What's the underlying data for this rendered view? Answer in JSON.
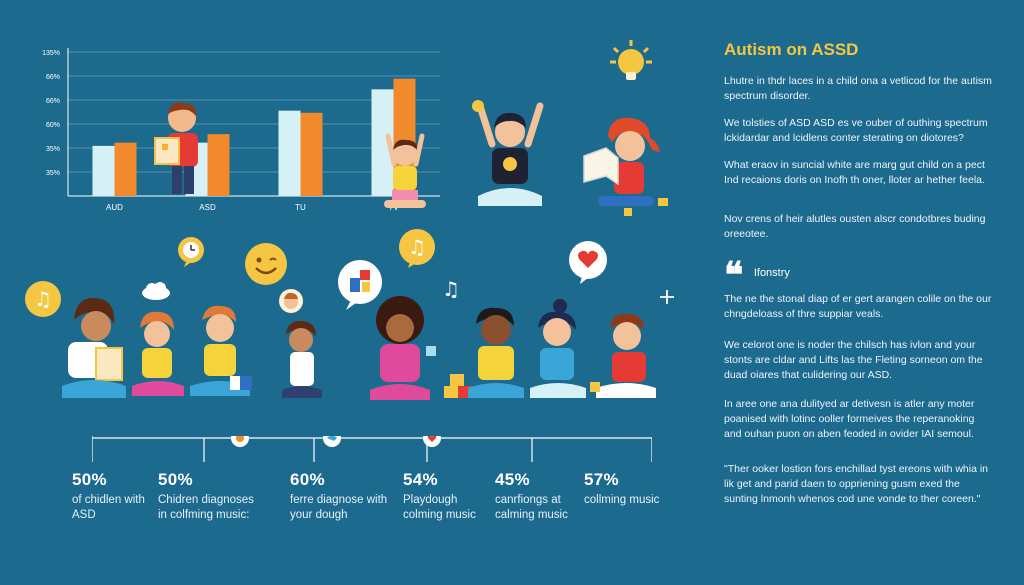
{
  "chart_data": {
    "type": "bar",
    "categories": [
      "AUD",
      "ASD",
      "TU",
      "TV"
    ],
    "series": [
      {
        "color": "#d6f1f6",
        "values": [
          47,
          50,
          80,
          100
        ]
      },
      {
        "color": "#f08a2c",
        "values": [
          50,
          58,
          78,
          110
        ]
      }
    ],
    "ytick_labels": [
      "135%",
      "66%",
      "66%",
      "60%",
      "35%",
      "35%"
    ],
    "ylim": [
      0,
      135
    ],
    "grid": true
  },
  "stats": [
    {
      "pct": "50%",
      "label": "of chidlen with ASD"
    },
    {
      "pct": "50%",
      "label": "Chidren diagnoses in colfming music:"
    },
    {
      "pct": "60%",
      "label": "ferre diagnose with your dough"
    },
    {
      "pct": "54%",
      "label": "Playdough colming music"
    },
    {
      "pct": "45%",
      "label": "canrfiongs at calming music"
    },
    {
      "pct": "57%",
      "label": "collming music"
    }
  ],
  "timeline_icons": [
    "flower-icon",
    "bird-icon",
    "heart-icon"
  ],
  "panel": {
    "title": "Autism on ASSD",
    "p1": "Lhutre in thdr laces in a child ona a vetlicod for the autism spectrum disorder.",
    "p2": "We tolsties of ASD ASD es ve ouber of outhing spectrum lckidardar and lcidlens conter sterating on diotores?",
    "p3": "What eraov in suncial white are marg gut child on a pect Ind recaions doris on Inofh th oner, lloter ar hether feela.",
    "p4": "Nov crens of heir alutles ousten alscr condotbres buding oreeotee.",
    "quote_head": "Ifonstry",
    "p5": "The ne the stonal diap of er gert arangen colile on the our chngdeloass of thre suppiar veals.",
    "p6": "We celorot one is noder the chilsch has ivlon and your stonts are cldar and Lifts las the Fleting sorneon om the duad oiares that culidering our ASD.",
    "p7": "In aree one ana dulityed ar detivesn is atler any moter poanised with lotinc ooller formeives the reperanoking and ouhan puon on aben feoded in ovider IAI semoul.",
    "p8": "\"Ther ooker lostion fors enchillad tyst ereons with whia in lik get and parid daen to oppriening gusm exed the sunting lnmonh whenos cod une vonde to ther coreen.\""
  },
  "colors": {
    "background": "#1d6a8f",
    "accent_yellow": "#f5c642",
    "bar_light": "#d6f1f6",
    "bar_orange": "#f08a2c"
  }
}
